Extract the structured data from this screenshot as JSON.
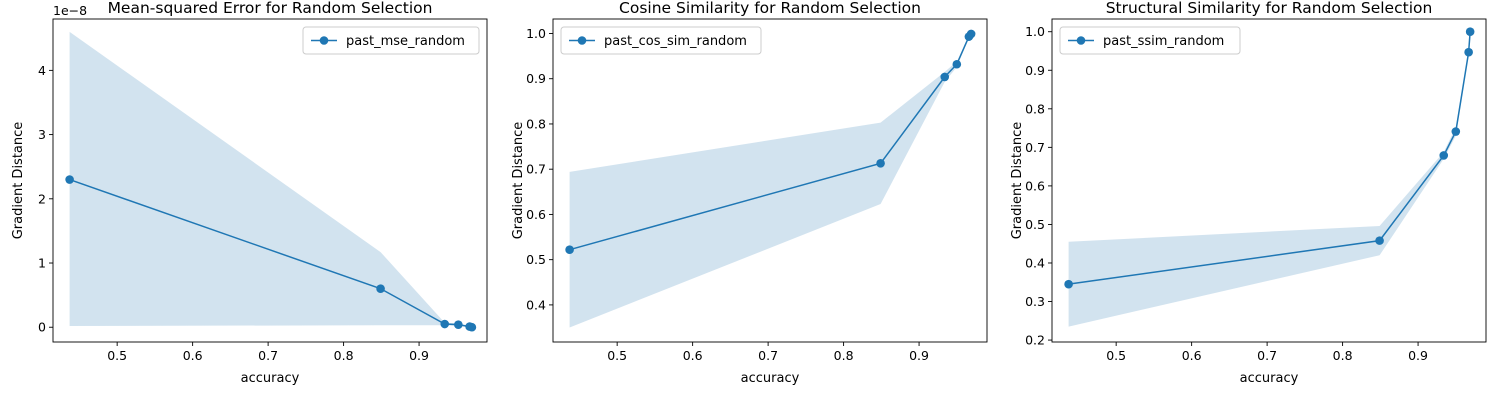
{
  "chart_data": [
    {
      "type": "line",
      "title": "Mean-squared Error for Random Selection",
      "xlabel": "accuracy",
      "ylabel": "Gradient Distance",
      "y_offset_text": "1e−8",
      "xlim": [
        0.415,
        0.99
      ],
      "ylim": [
        -0.23,
        4.8
      ],
      "x_ticks": [
        0.5,
        0.6,
        0.7,
        0.8,
        0.9
      ],
      "x_tick_labels": [
        "0.5",
        "0.6",
        "0.7",
        "0.8",
        "0.9"
      ],
      "y_ticks": [
        0,
        1,
        2,
        3,
        4
      ],
      "y_tick_labels": [
        "0",
        "1",
        "2",
        "3",
        "4"
      ],
      "legend_position": "top-right",
      "series": [
        {
          "name": "past_mse_random",
          "color": "#1f77b4",
          "band_color": "#c7dceb",
          "x": [
            0.437,
            0.849,
            0.934,
            0.952,
            0.967,
            0.97
          ],
          "y": [
            2.3,
            0.6,
            0.05,
            0.04,
            0.01,
            0.0
          ],
          "lower": [
            0.02,
            0.03,
            0.03,
            0.02,
            0.0,
            0.0
          ],
          "upper": [
            4.6,
            1.17,
            0.07,
            0.06,
            0.02,
            0.01
          ]
        }
      ]
    },
    {
      "type": "line",
      "title": "Cosine Similarity for Random Selection",
      "xlabel": "accuracy",
      "ylabel": "Gradient Distance",
      "xlim": [
        0.415,
        0.99
      ],
      "ylim": [
        0.318,
        1.032
      ],
      "x_ticks": [
        0.5,
        0.6,
        0.7,
        0.8,
        0.9
      ],
      "x_tick_labels": [
        "0.5",
        "0.6",
        "0.7",
        "0.8",
        "0.9"
      ],
      "y_ticks": [
        0.4,
        0.5,
        0.6,
        0.7,
        0.8,
        0.9,
        1.0
      ],
      "y_tick_labels": [
        "0.4",
        "0.5",
        "0.6",
        "0.7",
        "0.8",
        "0.9",
        "1.0"
      ],
      "legend_position": "top-left",
      "series": [
        {
          "name": "past_cos_sim_random",
          "color": "#1f77b4",
          "band_color": "#c7dceb",
          "x": [
            0.437,
            0.849,
            0.934,
            0.95,
            0.966,
            0.969
          ],
          "y": [
            0.522,
            0.713,
            0.904,
            0.932,
            0.993,
            0.999
          ],
          "lower": [
            0.35,
            0.623,
            0.893,
            0.926,
            0.99,
            0.998
          ],
          "upper": [
            0.694,
            0.803,
            0.915,
            0.938,
            0.996,
            1.0
          ]
        }
      ]
    },
    {
      "type": "line",
      "title": "Structural Similarity for Random Selection",
      "xlabel": "accuracy",
      "ylabel": "Gradient Distance",
      "xlim": [
        0.415,
        0.99
      ],
      "ylim": [
        0.195,
        1.033
      ],
      "x_ticks": [
        0.5,
        0.6,
        0.7,
        0.8,
        0.9
      ],
      "x_tick_labels": [
        "0.5",
        "0.6",
        "0.7",
        "0.8",
        "0.9"
      ],
      "y_ticks": [
        0.2,
        0.3,
        0.4,
        0.5,
        0.6,
        0.7,
        0.8,
        0.9,
        1.0
      ],
      "y_tick_labels": [
        "0.2",
        "0.3",
        "0.4",
        "0.5",
        "0.6",
        "0.7",
        "0.8",
        "0.9",
        "1.0"
      ],
      "legend_position": "top-left",
      "series": [
        {
          "name": "past_ssim_random",
          "color": "#1f77b4",
          "band_color": "#c7dceb",
          "x": [
            0.437,
            0.849,
            0.934,
            0.95,
            0.967,
            0.969
          ],
          "y": [
            0.345,
            0.458,
            0.679,
            0.741,
            0.947,
            1.0
          ],
          "lower": [
            0.235,
            0.42,
            0.67,
            0.73,
            0.942,
            1.0
          ],
          "upper": [
            0.455,
            0.496,
            0.688,
            0.752,
            0.952,
            1.0
          ]
        }
      ]
    }
  ]
}
